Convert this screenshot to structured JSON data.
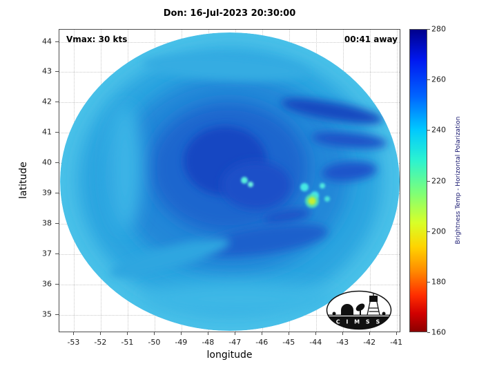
{
  "title": "Don: 16-Jul-2023 20:30:00",
  "annotations": {
    "vmax": "Vmax: 30 kts",
    "time_away": "00:41 away"
  },
  "axes": {
    "xlabel": "longitude",
    "ylabel": "latitude",
    "xlim": [
      -53.55,
      -40.85
    ],
    "ylim": [
      34.4,
      44.4
    ],
    "x_ticks": [
      -53,
      -52,
      -51,
      -50,
      -49,
      -48,
      -47,
      -46,
      -45,
      -44,
      -43,
      -42,
      -41
    ],
    "y_ticks": [
      35,
      36,
      37,
      38,
      39,
      40,
      41,
      42,
      43,
      44
    ]
  },
  "colorbar": {
    "label": "Brightness Temp - Horizontal Polarization",
    "min": 160,
    "max": 280,
    "ticks": [
      160,
      180,
      200,
      220,
      240,
      260,
      280
    ],
    "gradient": [
      "#00008c 0%",
      "#0018f0 10%",
      "#0064ff 22%",
      "#00c8ff 33%",
      "#2af2d2 43%",
      "#7dff78 54%",
      "#d8ff28 64%",
      "#ffd300 72%",
      "#ff8a00 80%",
      "#ff2d00 88%",
      "#d10000 94%",
      "#8c0000 100%"
    ]
  },
  "logo": {
    "text": "C I M S S"
  },
  "chart_data": {
    "type": "heatmap",
    "title": "Don: 16-Jul-2023 20:30:00",
    "xlabel": "longitude",
    "ylabel": "latitude",
    "xlim": [
      -53.55,
      -40.85
    ],
    "ylim": [
      34.4,
      44.4
    ],
    "x_ticks": [
      -53,
      -52,
      -51,
      -50,
      -49,
      -48,
      -47,
      -46,
      -45,
      -44,
      -43,
      -42,
      -41
    ],
    "y_ticks": [
      35,
      36,
      37,
      38,
      39,
      40,
      41,
      42,
      43,
      44
    ],
    "value_label": "Brightness Temp - Horizontal Polarization",
    "value_range_K": [
      160,
      280
    ],
    "colormap": "reversed jet (160 K = dark red at bottom, 280 K = dark blue at top)",
    "grid": "dotted, light gray, at every 1-degree tick",
    "storm": {
      "name": "Don",
      "datetime": "16-Jul-2023 20:30:00",
      "vmax_kts": 30,
      "scan_time_offset": "00:41 away"
    },
    "scan_disk": {
      "shape": "circular microwave scan footprint filling nearly the whole axes",
      "center_lon": -47.2,
      "center_lat": 39.4,
      "radius_lon_deg": 6.3,
      "radius_lat_deg": 4.9
    },
    "field_summary": {
      "disk_edge_K": "242-250 (lighter cyan-blue rim around circumference)",
      "background_K": "250-260 (medium blue over most of the disk)",
      "darkest_blue_patches_K": "262-270 (irregular swirl bands near the center, a streak in the NE quadrant near lon -44.5 lat 41.5, and a band south of center near lat 38)",
      "warm_spots": [
        {
          "lon": -44.2,
          "lat": 38.8,
          "approx_K": 205,
          "note": "small yellow-green pixel cluster ringed by cyan"
        },
        {
          "lon": -44.1,
          "lat": 39.2,
          "approx_K": 228,
          "note": "cluster of cyan specks"
        },
        {
          "lon": -43.8,
          "lat": 39.5,
          "approx_K": 230,
          "note": "cyan speck"
        },
        {
          "lon": -46.6,
          "lat": 39.4,
          "approx_K": 232,
          "note": "pair of small cyan specks just right of disk center"
        }
      ]
    },
    "legend_position": "vertical colorbar on right side",
    "branding": "CIMSS logo ellipse in lower-right corner of axes"
  }
}
